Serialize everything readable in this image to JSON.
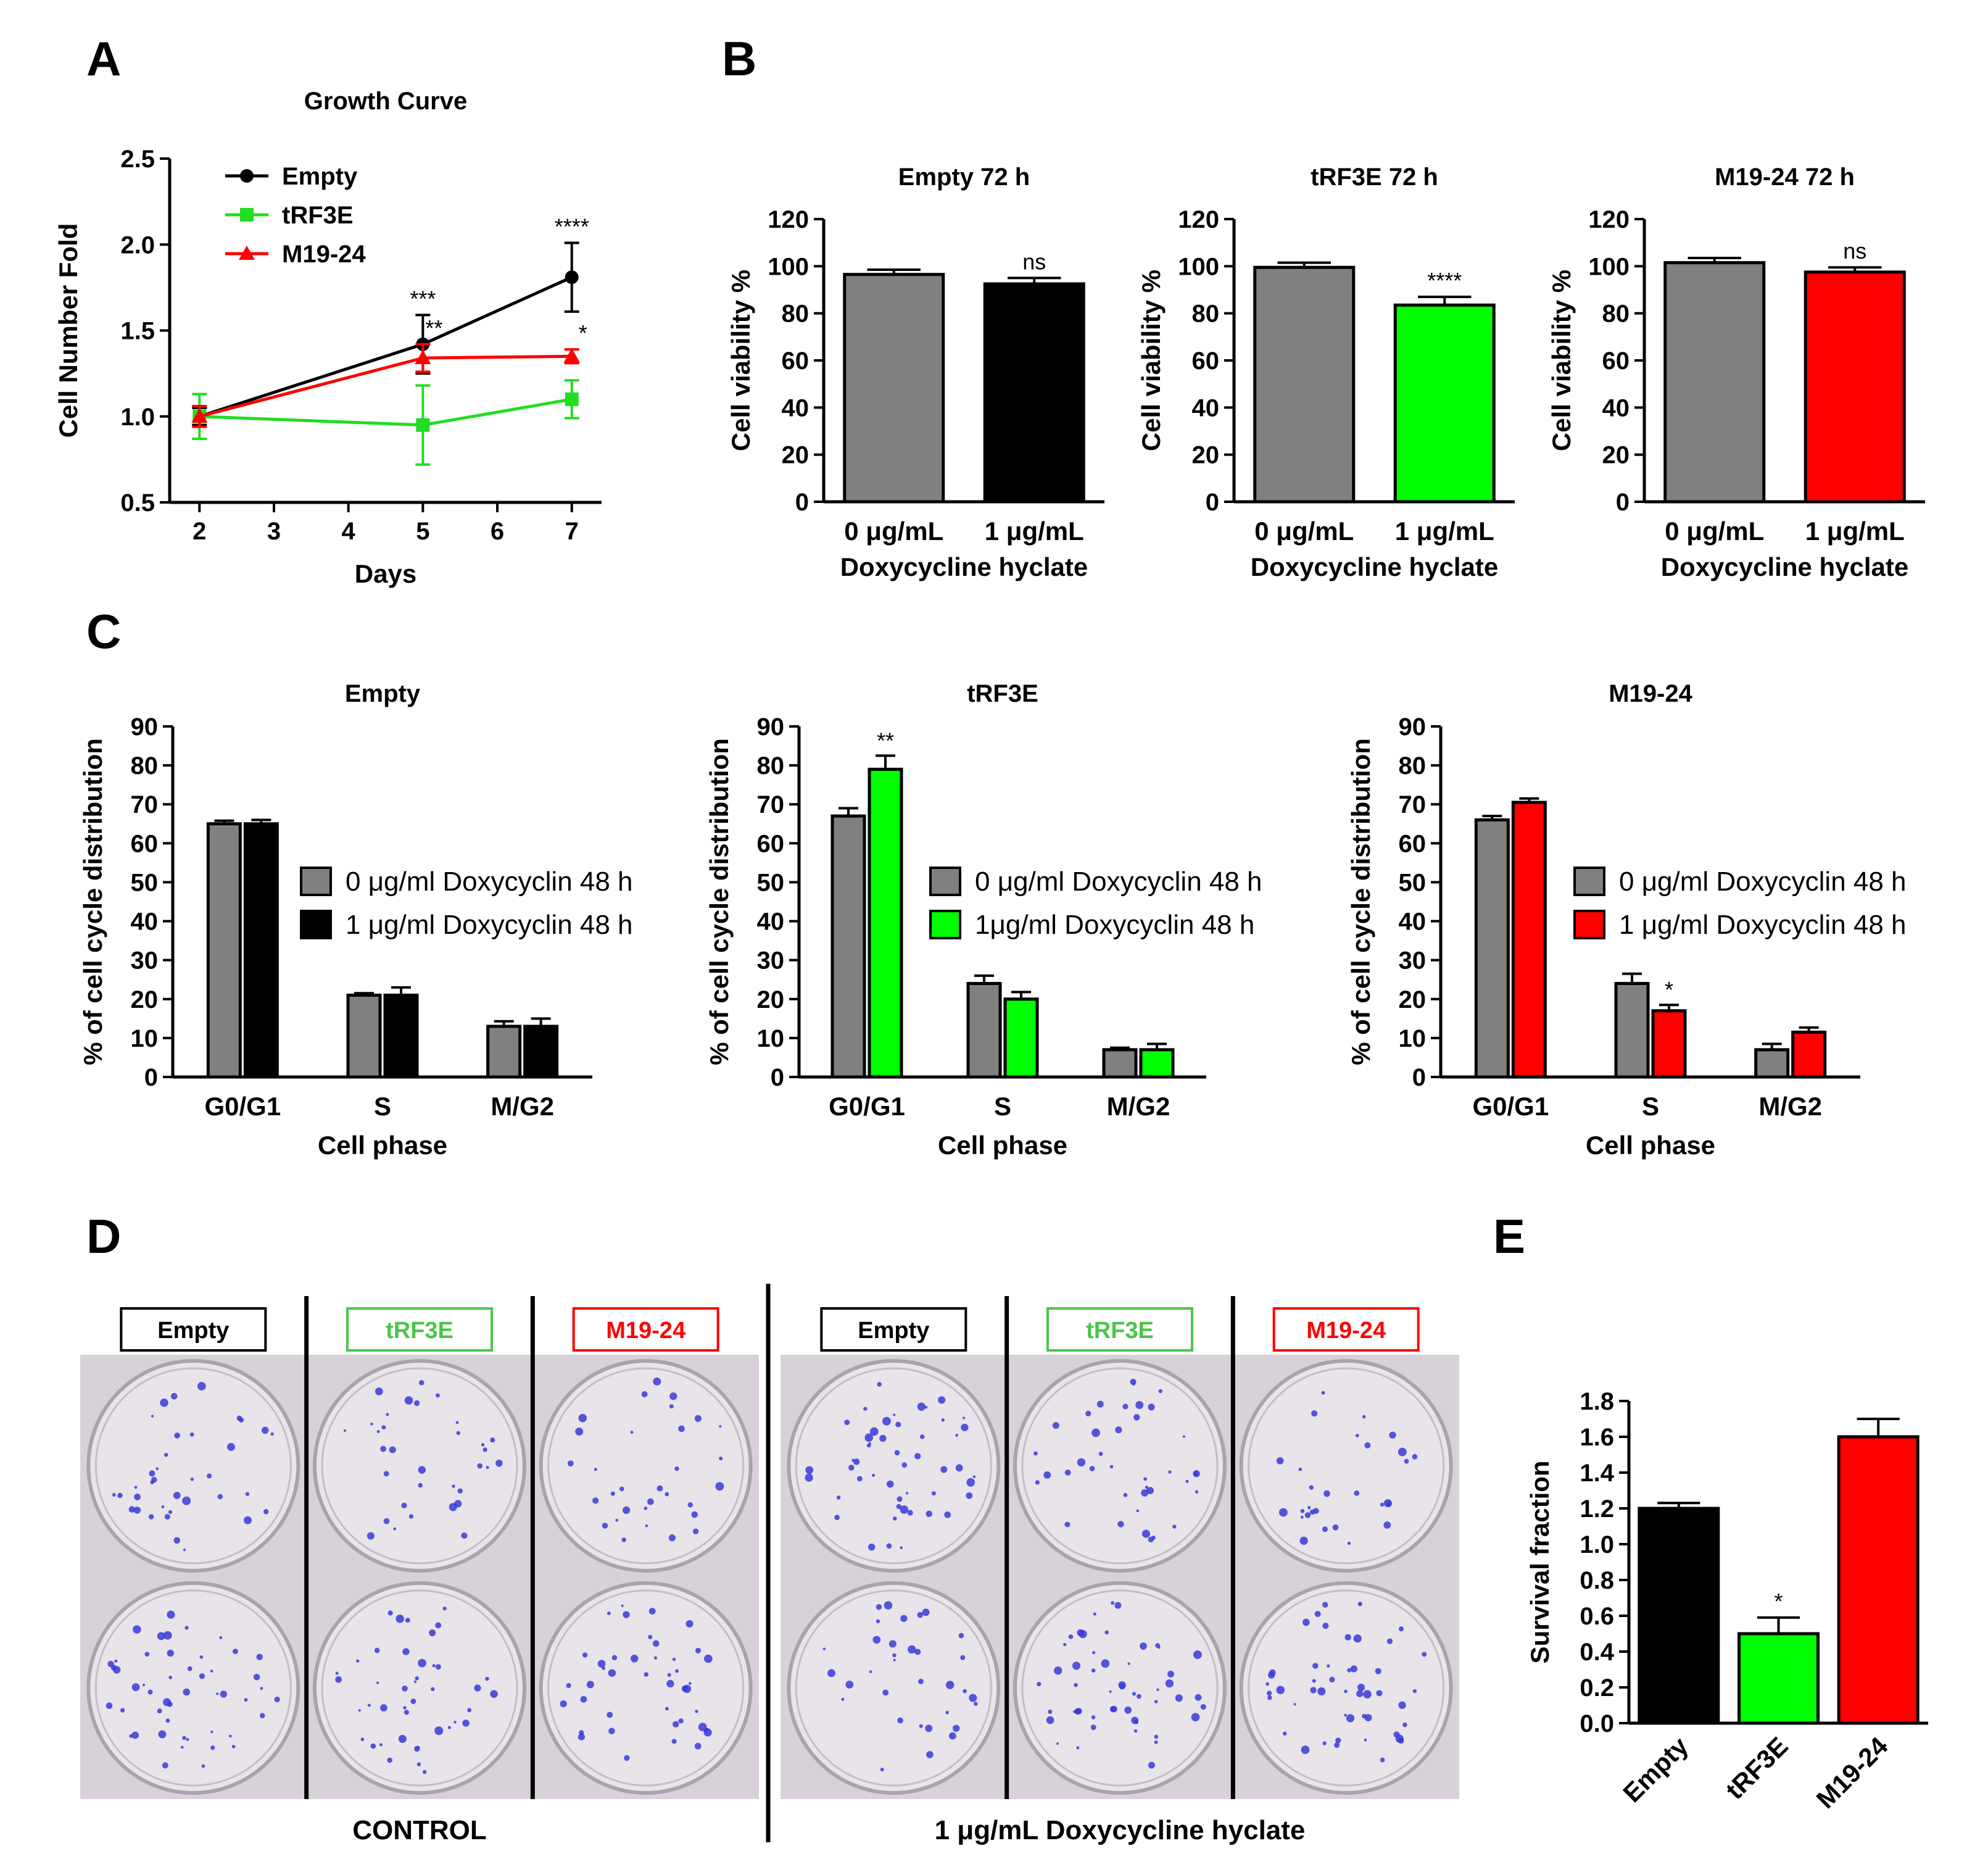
{
  "panel_labels": {
    "a": "A",
    "b": "B",
    "c": "C",
    "d": "D",
    "e": "E"
  },
  "colors": {
    "empty": "#000000",
    "trf3e": "#00ff00",
    "m1924": "#ff0000",
    "control": "#808080"
  },
  "chart_data": [
    {
      "id": "A",
      "type": "line",
      "title": "Growth Curve",
      "xlabel": "Days",
      "ylabel": "Cell Number Fold",
      "xlim": [
        1.6,
        7.4
      ],
      "ylim": [
        0.5,
        2.5
      ],
      "xticks": [
        "2",
        "3",
        "4",
        "5",
        "6",
        "7"
      ],
      "yticks": [
        "0.5",
        "1.0",
        "1.5",
        "2.0",
        "2.5"
      ],
      "series": [
        {
          "name": "Empty",
          "color": "#000000",
          "marker": "circle",
          "x": [
            2,
            5,
            7
          ],
          "y": [
            1.0,
            1.42,
            1.81
          ],
          "err": [
            0.05,
            0.17,
            0.2
          ],
          "sig": [
            "",
            "***",
            "****"
          ]
        },
        {
          "name": "tRF3E",
          "color": "#22dd22",
          "marker": "square",
          "x": [
            2,
            5,
            7
          ],
          "y": [
            1.0,
            0.95,
            1.1
          ],
          "err": [
            0.13,
            0.23,
            0.11
          ],
          "sig": [
            "",
            "",
            ""
          ]
        },
        {
          "name": "M19-24",
          "color": "#ff0000",
          "marker": "triangle",
          "x": [
            2,
            5,
            7
          ],
          "y": [
            1.0,
            1.34,
            1.35
          ],
          "err": [
            0.06,
            0.08,
            0.04
          ],
          "sig": [
            "",
            "**",
            "*"
          ]
        }
      ]
    },
    {
      "id": "B1",
      "type": "bar",
      "title": "Empty 72 h",
      "ylabel": "Cell viability %",
      "xlabel": "Doxycycline hyclate",
      "categories": [
        "0 μg/mL",
        "1 μg/mL"
      ],
      "values": [
        96.5,
        92.5
      ],
      "err": [
        2,
        2.5
      ],
      "colors": [
        "#808080",
        "#000000"
      ],
      "sig": [
        "",
        "ns"
      ],
      "ylim": [
        0,
        120
      ],
      "yticks": [
        "0",
        "20",
        "40",
        "60",
        "80",
        "100",
        "120"
      ]
    },
    {
      "id": "B2",
      "type": "bar",
      "title": "tRF3E 72 h",
      "ylabel": "Cell viability %",
      "xlabel": "Doxycycline hyclate",
      "categories": [
        "0 μg/mL",
        "1 μg/mL"
      ],
      "values": [
        99.5,
        83.5
      ],
      "err": [
        2,
        3.5
      ],
      "colors": [
        "#808080",
        "#00ff00"
      ],
      "sig": [
        "",
        "****"
      ],
      "ylim": [
        0,
        120
      ],
      "yticks": [
        "0",
        "20",
        "40",
        "60",
        "80",
        "100",
        "120"
      ]
    },
    {
      "id": "B3",
      "type": "bar",
      "title": "M19-24 72 h",
      "ylabel": "Cell viability %",
      "xlabel": "Doxycycline hyclate",
      "categories": [
        "0 μg/mL",
        "1 μg/mL"
      ],
      "values": [
        101.5,
        97.5
      ],
      "err": [
        2,
        2
      ],
      "colors": [
        "#808080",
        "#ff0000"
      ],
      "sig": [
        "",
        "ns"
      ],
      "ylim": [
        0,
        120
      ],
      "yticks": [
        "0",
        "20",
        "40",
        "60",
        "80",
        "100",
        "120"
      ]
    },
    {
      "id": "C1",
      "type": "bar",
      "title": "Empty",
      "ylabel": "% of cell cycle distribution",
      "xlabel": "Cell phase",
      "categories": [
        "G0/G1",
        "S",
        "M/G2"
      ],
      "ylim": [
        0,
        90
      ],
      "yticks": [
        "0",
        "10",
        "20",
        "30",
        "40",
        "50",
        "60",
        "70",
        "80",
        "90"
      ],
      "series": [
        {
          "name": "0 μg/ml Doxycyclin 48 h",
          "color": "#808080",
          "values": [
            65,
            21,
            13
          ],
          "err": [
            0.8,
            0.5,
            1.3
          ],
          "sig": [
            "",
            "",
            ""
          ]
        },
        {
          "name": "1 μg/ml Doxycyclin 48 h",
          "color": "#000000",
          "values": [
            65,
            21,
            13
          ],
          "err": [
            1,
            2,
            2
          ],
          "sig": [
            "",
            "",
            ""
          ]
        }
      ]
    },
    {
      "id": "C2",
      "type": "bar",
      "title": "tRF3E",
      "ylabel": "% of cell cycle distribution",
      "xlabel": "Cell phase",
      "categories": [
        "G0/G1",
        "S",
        "M/G2"
      ],
      "ylim": [
        0,
        90
      ],
      "yticks": [
        "0",
        "10",
        "20",
        "30",
        "40",
        "50",
        "60",
        "70",
        "80",
        "90"
      ],
      "series": [
        {
          "name": "0 μg/ml Doxycyclin 48 h",
          "color": "#808080",
          "values": [
            67,
            24,
            7
          ],
          "err": [
            2,
            2,
            0.5
          ],
          "sig": [
            "",
            "",
            ""
          ]
        },
        {
          "name": "1μg/ml Doxycyclin 48 h",
          "color": "#00ff00",
          "values": [
            79,
            20,
            7
          ],
          "err": [
            3.5,
            1.8,
            1.5
          ],
          "sig": [
            "**",
            "",
            ""
          ]
        }
      ]
    },
    {
      "id": "C3",
      "type": "bar",
      "title": "M19-24",
      "ylabel": "% of cell cycle distribution",
      "xlabel": "Cell phase",
      "categories": [
        "G0/G1",
        "S",
        "M/G2"
      ],
      "ylim": [
        0,
        90
      ],
      "yticks": [
        "0",
        "10",
        "20",
        "30",
        "40",
        "50",
        "60",
        "70",
        "80",
        "90"
      ],
      "series": [
        {
          "name": "0 μg/ml Doxycyclin 48 h",
          "color": "#808080",
          "values": [
            66,
            24,
            7
          ],
          "err": [
            1,
            2.5,
            1.5
          ],
          "sig": [
            "",
            "",
            ""
          ]
        },
        {
          "name": "1 μg/ml Doxycyclin 48 h",
          "color": "#ff0000",
          "values": [
            70.5,
            17,
            11.5
          ],
          "err": [
            1,
            1.5,
            1.2
          ],
          "sig": [
            "",
            "*",
            ""
          ]
        }
      ]
    },
    {
      "id": "E",
      "type": "bar",
      "title": "",
      "ylabel": "Survival fraction",
      "xlabel": "",
      "categories": [
        "Empty",
        "tRF3E",
        "M19-24"
      ],
      "values": [
        1.2,
        0.5,
        1.6
      ],
      "err": [
        0.03,
        0.09,
        0.1
      ],
      "colors": [
        "#000000",
        "#00ff00",
        "#ff0000"
      ],
      "sig": [
        "",
        "*",
        ""
      ],
      "ylim": [
        0,
        1.8
      ],
      "yticks": [
        "0.0",
        "0.2",
        "0.4",
        "0.6",
        "0.8",
        "1.0",
        "1.2",
        "1.4",
        "1.6",
        "1.8"
      ]
    }
  ],
  "panel_d": {
    "groups": [
      {
        "caption": "CONTROL",
        "columns": [
          {
            "label": "Empty",
            "color": "#000000"
          },
          {
            "label": "tRF3E",
            "color": "#4cc44c"
          },
          {
            "label": "M19-24",
            "color": "#ff0000"
          }
        ]
      },
      {
        "caption": "1 μg/mL Doxycycline hyclate",
        "columns": [
          {
            "label": "Empty",
            "color": "#000000"
          },
          {
            "label": "tRF3E",
            "color": "#4cc44c"
          },
          {
            "label": "M19-24",
            "color": "#ff0000"
          }
        ]
      }
    ],
    "colony_color": "#3a3ad8"
  }
}
